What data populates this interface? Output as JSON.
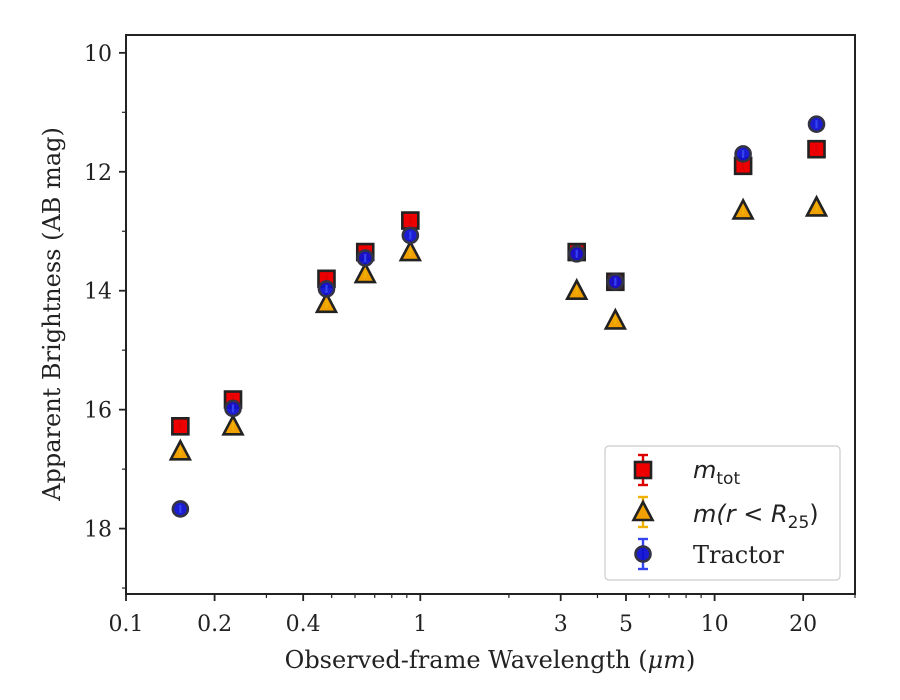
{
  "chart_data": {
    "type": "scatter",
    "xlabel_prefix": "Observed-frame Wavelength (",
    "xlabel_unit": "μm",
    "xlabel_suffix": ")",
    "ylabel": "Apparent Brightness (AB mag)",
    "x_scale": "log",
    "xlim": [
      0.1,
      30
    ],
    "ylim": [
      19.1,
      9.7
    ],
    "y_inverted": true,
    "grid": false,
    "legend_position": "lower-right",
    "x_ticks": [
      0.1,
      0.2,
      0.4,
      1,
      3,
      5,
      10,
      20
    ],
    "x_tick_labels": [
      "0.1",
      "0.2",
      "0.4",
      "1",
      "3",
      "5",
      "10",
      "20"
    ],
    "y_ticks": [
      10,
      12,
      14,
      16,
      18
    ],
    "y_tick_labels": [
      "10",
      "12",
      "14",
      "16",
      "18"
    ],
    "series": [
      {
        "key": "mtot",
        "legend_main": "m",
        "legend_sub": "tot",
        "marker": "square",
        "color": "#ee0000",
        "errorbar_color": "#dd0000",
        "x": [
          0.153,
          0.231,
          0.48,
          0.65,
          0.925,
          3.4,
          4.6,
          12.5,
          22.2
        ],
        "y": [
          16.28,
          15.83,
          13.8,
          13.35,
          12.82,
          13.35,
          13.85,
          11.9,
          11.62
        ]
      },
      {
        "key": "mr25",
        "legend_main": "m(r < R",
        "legend_sub": "25",
        "legend_close": ")",
        "marker": "triangle",
        "color": "#f0a000",
        "errorbar_color": "#f0b000",
        "x": [
          0.153,
          0.231,
          0.48,
          0.65,
          0.925,
          3.4,
          4.6,
          12.5,
          22.2
        ],
        "y": [
          16.7,
          16.28,
          14.22,
          13.72,
          13.35,
          14.0,
          14.5,
          12.65,
          12.6
        ]
      },
      {
        "key": "tractor",
        "legend_main": "Tractor",
        "marker": "circle",
        "color": "#1010d0",
        "errorbar_color": "#3344ee",
        "x": [
          0.153,
          0.231,
          0.48,
          0.65,
          0.925,
          3.4,
          4.6,
          12.5,
          22.2
        ],
        "y": [
          17.67,
          15.98,
          13.97,
          13.45,
          13.07,
          13.38,
          13.85,
          11.7,
          11.2
        ]
      }
    ]
  }
}
